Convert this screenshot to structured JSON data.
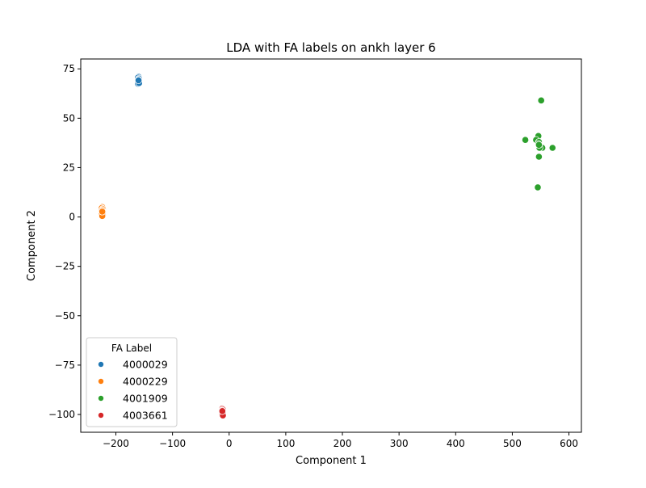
{
  "chart_data": {
    "type": "scatter",
    "title": "LDA with FA labels on ankh layer 6",
    "xlabel": "Component 1",
    "ylabel": "Component 2",
    "xlim": [
      -262,
      622
    ],
    "ylim": [
      -109,
      80
    ],
    "xticks": [
      -200,
      -100,
      0,
      100,
      200,
      300,
      400,
      500,
      600
    ],
    "xtick_labels": [
      "−200",
      "−100",
      "0",
      "100",
      "200",
      "300",
      "400",
      "500",
      "600"
    ],
    "yticks": [
      -100,
      -75,
      -50,
      -25,
      0,
      25,
      50,
      75
    ],
    "ytick_labels": [
      "−100",
      "−75",
      "−50",
      "−25",
      "0",
      "25",
      "50",
      "75"
    ],
    "grid": false,
    "legend": {
      "title": "FA Label",
      "position": "bottom-left"
    },
    "series": [
      {
        "name": "4000029",
        "color": "#1f77b4",
        "points": [
          [
            -160,
            71
          ],
          [
            -161,
            70.5
          ],
          [
            -159,
            70
          ],
          [
            -160,
            69.5
          ],
          [
            -161,
            69
          ],
          [
            -159,
            68.5
          ],
          [
            -160,
            68
          ],
          [
            -161,
            67.5
          ],
          [
            -159,
            67.8
          ],
          [
            -160,
            69.2
          ]
        ]
      },
      {
        "name": "4000229",
        "color": "#ff7f0e",
        "points": [
          [
            -224,
            5
          ],
          [
            -225,
            4.5
          ],
          [
            -223,
            4
          ],
          [
            -224,
            3.5
          ],
          [
            -225,
            3
          ],
          [
            -223,
            2.5
          ],
          [
            -224,
            2
          ],
          [
            -225,
            1.5
          ],
          [
            -223,
            1
          ],
          [
            -224,
            0.5
          ],
          [
            -224,
            2.7
          ]
        ]
      },
      {
        "name": "4001909",
        "color": "#2ca02c",
        "points": [
          [
            551,
            59
          ],
          [
            523,
            39
          ],
          [
            546,
            41
          ],
          [
            542,
            39
          ],
          [
            547,
            38
          ],
          [
            546,
            37
          ],
          [
            549,
            36
          ],
          [
            553,
            35
          ],
          [
            571,
            35
          ],
          [
            548,
            35
          ],
          [
            547,
            30.5
          ],
          [
            545,
            15
          ],
          [
            547,
            36.5
          ]
        ]
      },
      {
        "name": "4003661",
        "color": "#d62728",
        "points": [
          [
            -12,
            -97
          ],
          [
            -11,
            -97.5
          ],
          [
            -12,
            -98
          ],
          [
            -11,
            -98.5
          ],
          [
            -12,
            -99
          ],
          [
            -11,
            -99.5
          ],
          [
            -12,
            -100
          ],
          [
            -11,
            -100.5
          ],
          [
            -12,
            -98.3
          ]
        ]
      }
    ]
  }
}
